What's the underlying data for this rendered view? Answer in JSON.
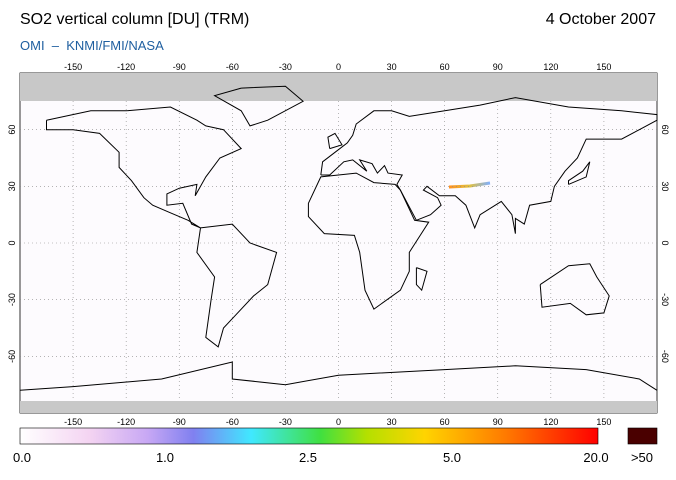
{
  "header": {
    "title": "SO2 vertical column [DU] (TRM)",
    "source": "OMI  –  KNMI/FMI/NASA",
    "date": "4 October 2007"
  },
  "map": {
    "lon_ticks": [
      "-150",
      "-120",
      "-90",
      "-60",
      "-30",
      "0",
      "30",
      "60",
      "90",
      "120",
      "150"
    ],
    "lat_ticks": [
      "60",
      "30",
      "0",
      "-30",
      "-60"
    ]
  },
  "colorbar": {
    "labels": [
      "0.0",
      "1.0",
      "2.5",
      "5.0",
      "20.0"
    ],
    "over_label": ">50"
  }
}
